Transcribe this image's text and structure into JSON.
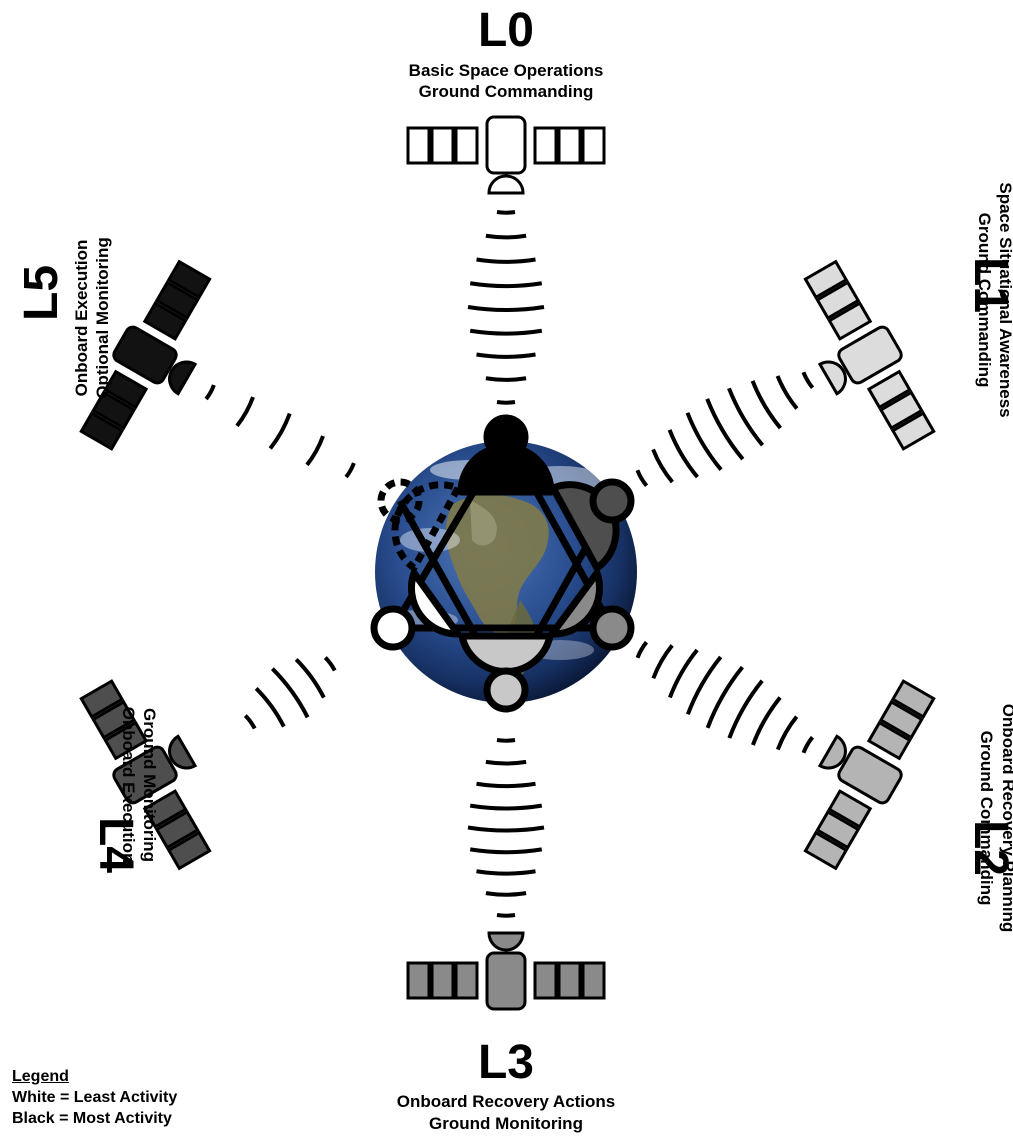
{
  "diagram": {
    "levels": [
      {
        "id": "L0",
        "title": "L0",
        "lines": [
          "Basic Space Operations",
          "Ground Commanding"
        ],
        "fill": "#ffffff"
      },
      {
        "id": "L1",
        "title": "L1",
        "lines": [
          "Space Situational Awareness",
          "Ground Commanding"
        ],
        "fill": "#dcdcdc"
      },
      {
        "id": "L2",
        "title": "L2",
        "lines": [
          "Onboard Recovery Planning",
          "Ground Commanding"
        ],
        "fill": "#b4b4b4"
      },
      {
        "id": "L3",
        "title": "L3",
        "lines": [
          "Onboard Recovery Actions",
          "Ground Monitoring"
        ],
        "fill": "#8a8a8a"
      },
      {
        "id": "L4",
        "title": "L4",
        "lines": [
          "Onboard Execution",
          "Ground Monitoring"
        ],
        "fill": "#4e4e4e"
      },
      {
        "id": "L5",
        "title": "L5",
        "lines": [
          "Onboard Execution",
          "Optional Monitoring"
        ],
        "fill": "#121212"
      }
    ],
    "center": {
      "image": "earth-globe"
    }
  },
  "legend": {
    "title": "Legend",
    "items": [
      "White = Least Activity",
      "Black = Most Activity"
    ]
  }
}
